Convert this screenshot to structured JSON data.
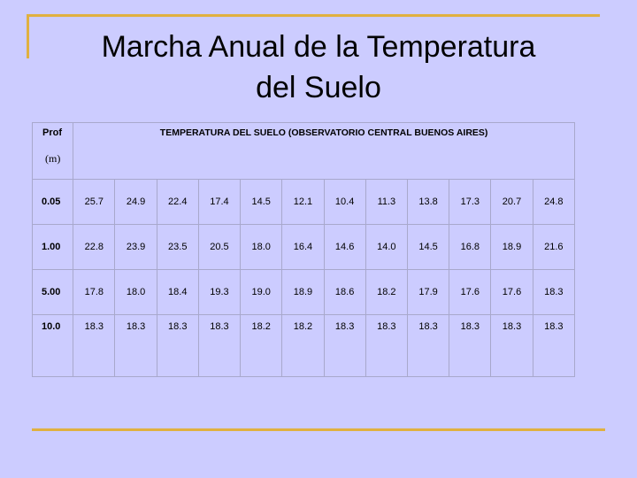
{
  "slide": {
    "title_line1": "Marcha Anual de la Temperatura",
    "title_line2": "del Suelo"
  },
  "table": {
    "prof_label": "Prof",
    "unit_label": "(m)",
    "header": "TEMPERATURA DEL SUELO (OBSERVATORIO CENTRAL BUENOS AIRES)",
    "rows": [
      {
        "depth": "0.05",
        "values": [
          "25.7",
          "24.9",
          "22.4",
          "17.4",
          "14.5",
          "12.1",
          "10.4",
          "11.3",
          "13.8",
          "17.3",
          "20.7",
          "24.8"
        ]
      },
      {
        "depth": "1.00",
        "values": [
          "22.8",
          "23.9",
          "23.5",
          "20.5",
          "18.0",
          "16.4",
          "14.6",
          "14.0",
          "14.5",
          "16.8",
          "18.9",
          "21.6"
        ]
      },
      {
        "depth": "5.00",
        "values": [
          "17.8",
          "18.0",
          "18.4",
          "19.3",
          "19.0",
          "18.9",
          "18.6",
          "18.2",
          "17.9",
          "17.6",
          "17.6",
          "18.3"
        ]
      },
      {
        "depth": "10.0",
        "values": [
          "18.3",
          "18.3",
          "18.3",
          "18.3",
          "18.2",
          "18.2",
          "18.3",
          "18.3",
          "18.3",
          "18.3",
          "18.3",
          "18.3"
        ]
      }
    ]
  },
  "colors": {
    "background": "#ccccff",
    "accent_line": "#e0b040",
    "grid": "#a8a8cc"
  }
}
